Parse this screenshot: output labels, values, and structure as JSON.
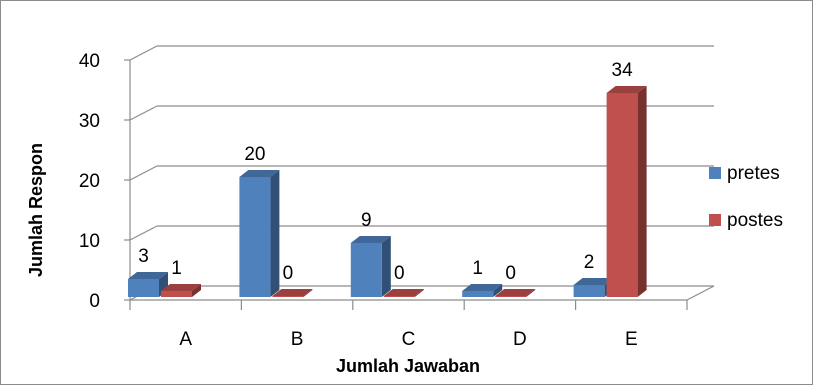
{
  "chart_data": {
    "type": "bar",
    "categories": [
      "A",
      "B",
      "C",
      "D",
      "E"
    ],
    "series": [
      {
        "name": "pretes",
        "values": [
          3,
          20,
          9,
          1,
          2
        ],
        "color": "#4f81bd"
      },
      {
        "name": "postes",
        "values": [
          1,
          0,
          0,
          0,
          34
        ],
        "color": "#c0504d"
      }
    ],
    "title": "",
    "xlabel": "Jumlah Jawaban",
    "ylabel": "Jumlah Respon",
    "ylim": [
      0,
      40
    ],
    "yticks": [
      0,
      10,
      20,
      30,
      40
    ],
    "grid": true,
    "legend": "right",
    "style": "3d-column"
  }
}
